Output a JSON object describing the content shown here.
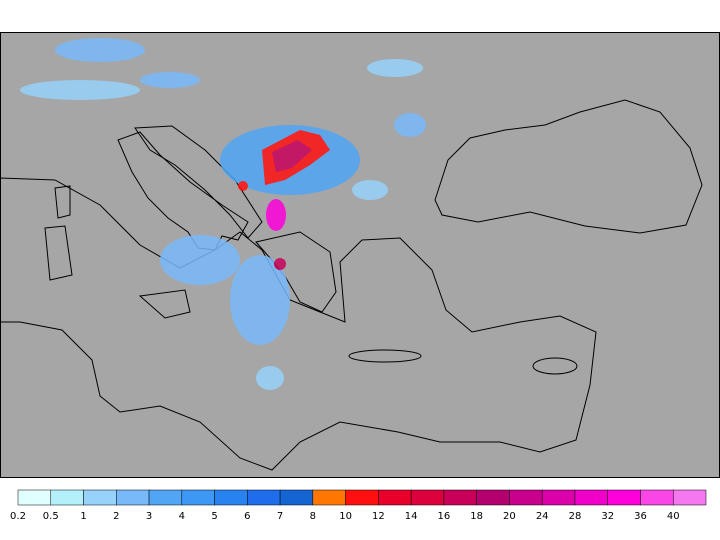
{
  "legend": {
    "labels": [
      0.2,
      0.5,
      1,
      2,
      3,
      4,
      5,
      6,
      7,
      8,
      10,
      12,
      14,
      16,
      18,
      20,
      24,
      28,
      32,
      36,
      40
    ],
    "colors": [
      "#e0ffff",
      "#b4f0fa",
      "#96d2fa",
      "#78b9fa",
      "#50a5f5",
      "#3c97f5",
      "#2883f0",
      "#1e6eeb",
      "#1464d2",
      "#ff7700",
      "#ff1010",
      "#e8002a",
      "#dc003c",
      "#c8005a",
      "#b4006e",
      "#c8008c",
      "#dc00aa",
      "#f000c8",
      "#ff00dc",
      "#fa46e6",
      "#f578f0"
    ]
  }
}
